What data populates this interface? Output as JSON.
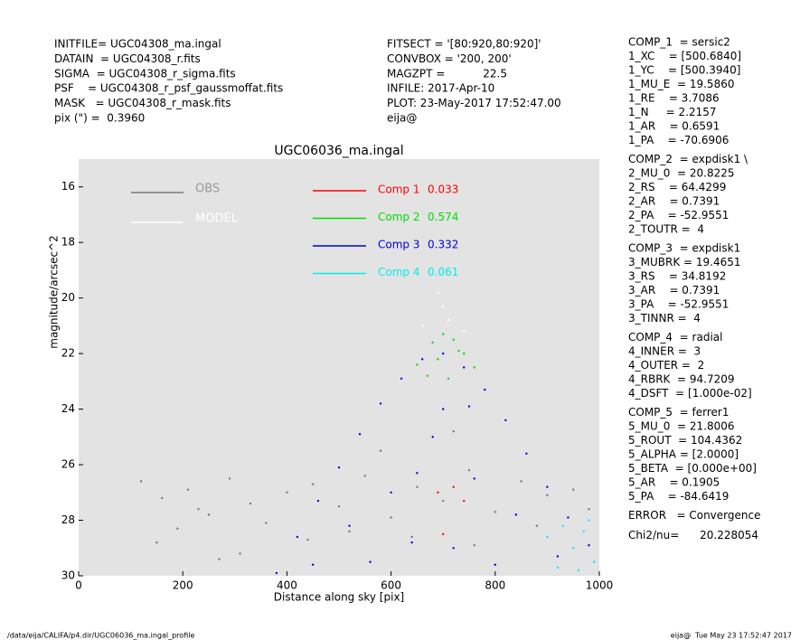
{
  "header": {
    "left": [
      "INITFILE= UGC04308_ma.ingal",
      "DATAIN  = UGC04308_r.fits",
      "SIGMA  = UGC04308_r_sigma.fits",
      "PSF    = UGC04308_r_psf_gaussmoffat.fits",
      "MASK   = UGC04308_r_mask.fits",
      "pix (\") =  0.3960"
    ],
    "middle": [
      "FITSECT = '[80:920,80:920]'",
      "CONVBOX = '200, 200'",
      "MAGZPT =           22.5",
      "INFILE: 2017-Apr-10",
      "PLOT: 23-May-2017 17:52:47.00",
      "eija@"
    ]
  },
  "params": [
    [
      "COMP_1  = sersic2",
      "1_XC    = [500.6840]",
      "1_YC    = [500.3940]",
      "1_MU_E  = 19.5860",
      "1_RE    = 3.7086",
      "1_N     = 2.2157",
      "1_AR    = 0.6591",
      "1_PA    = -70.6906"
    ],
    [
      "COMP_2  = expdisk1 \\",
      "2_MU_0  = 20.8225",
      "2_RS    = 64.4299",
      "2_AR    = 0.7391",
      "2_PA    = -52.9551",
      "2_TOUTR =  4"
    ],
    [
      "COMP_3  = expdisk1",
      "3_MUBRK = 19.4651",
      "3_RS    = 34.8192",
      "3_AR    = 0.7391",
      "3_PA    = -52.9551",
      "3_TINNR =  4"
    ],
    [
      "COMP_4  = radial",
      "4_INNER =  3",
      "4_OUTER =  2",
      "4_RBRK  = 94.7209",
      "4_DSFT  = [1.000e-02]"
    ],
    [
      "COMP_5  = ferrer1",
      "5_MU_0  = 21.8006",
      "5_ROUT  = 104.4362",
      "5_ALPHA = [2.0000]",
      "5_BETA  = [0.000e+00]",
      "5_AR    = 0.1905",
      "5_PA    = -84.6419"
    ],
    [
      "ERROR   = Convergence"
    ],
    [
      "Chi2/nu=      20.228054"
    ]
  ],
  "footer": {
    "left": "/data/eija/CALIFA/p4.dir/UGC06036_ma.ingal_profile",
    "right": "eija@  Tue May 23 17:52:47 2017"
  },
  "chart_data": {
    "type": "scatter",
    "title": "UGC06036_ma.ingal",
    "xlabel": "Distance along sky [pix]",
    "ylabel": "magnitude/arcsec^2",
    "xlim": [
      0,
      1000
    ],
    "xticks": [
      0,
      200,
      400,
      600,
      800,
      1000
    ],
    "ylim": [
      15,
      30
    ],
    "yticks": [
      16,
      18,
      20,
      22,
      24,
      26,
      28,
      30
    ],
    "invert_y": true,
    "background": "#e3e3e3",
    "series": [
      {
        "name": "OBS",
        "color": "#777777",
        "x": [
          120,
          160,
          210,
          250,
          290,
          330,
          360,
          150,
          230,
          310,
          400,
          450,
          500,
          550,
          600,
          650,
          700,
          750,
          800,
          850,
          900,
          950,
          980,
          520,
          640,
          760,
          880,
          440,
          580,
          720,
          270,
          190
        ],
        "y": [
          26.6,
          27.2,
          26.9,
          27.8,
          26.5,
          27.4,
          28.1,
          28.8,
          27.6,
          29.2,
          27.0,
          26.7,
          27.5,
          26.4,
          27.9,
          26.8,
          27.3,
          26.2,
          27.7,
          26.6,
          27.1,
          26.9,
          27.6,
          28.4,
          28.6,
          28.9,
          28.2,
          28.7,
          25.5,
          24.8,
          29.4,
          28.3
        ]
      },
      {
        "name": "MODEL",
        "color": "#ffffff",
        "x": [
          660,
          700,
          740,
          690,
          710
        ],
        "y": [
          21.0,
          20.3,
          21.2,
          19.8,
          20.8
        ]
      },
      {
        "name": "Comp 1",
        "fraction": 0.033,
        "color": "#ff0000",
        "x": [
          690,
          720,
          740,
          700
        ],
        "y": [
          27.0,
          26.8,
          27.3,
          28.5
        ]
      },
      {
        "name": "Comp 2",
        "fraction": 0.574,
        "color": "#00dd00",
        "x": [
          650,
          680,
          700,
          720,
          740,
          760,
          670,
          710,
          690,
          730
        ],
        "y": [
          22.4,
          21.6,
          21.3,
          21.5,
          22.0,
          22.5,
          22.8,
          22.9,
          22.2,
          21.9
        ]
      },
      {
        "name": "Comp 3",
        "fraction": 0.332,
        "color": "#0000dd",
        "x": [
          380,
          420,
          460,
          500,
          540,
          580,
          620,
          660,
          700,
          740,
          780,
          820,
          860,
          900,
          940,
          980,
          450,
          520,
          600,
          680,
          760,
          840,
          920,
          560,
          640,
          720,
          800,
          700,
          650,
          750
        ],
        "y": [
          29.9,
          28.6,
          27.3,
          26.1,
          24.9,
          23.8,
          22.9,
          22.2,
          22.0,
          22.5,
          23.3,
          24.4,
          25.6,
          26.8,
          27.9,
          28.9,
          29.6,
          28.2,
          27.0,
          25.0,
          26.5,
          27.8,
          29.3,
          29.5,
          28.8,
          29.0,
          29.6,
          24.0,
          26.3,
          23.9
        ]
      },
      {
        "name": "Comp 4",
        "fraction": 0.061,
        "color": "#00eeee",
        "x": [
          900,
          930,
          950,
          970,
          990,
          960,
          920,
          980
        ],
        "y": [
          28.6,
          28.2,
          29.0,
          28.4,
          29.5,
          29.8,
          29.7,
          28.0
        ]
      }
    ]
  }
}
